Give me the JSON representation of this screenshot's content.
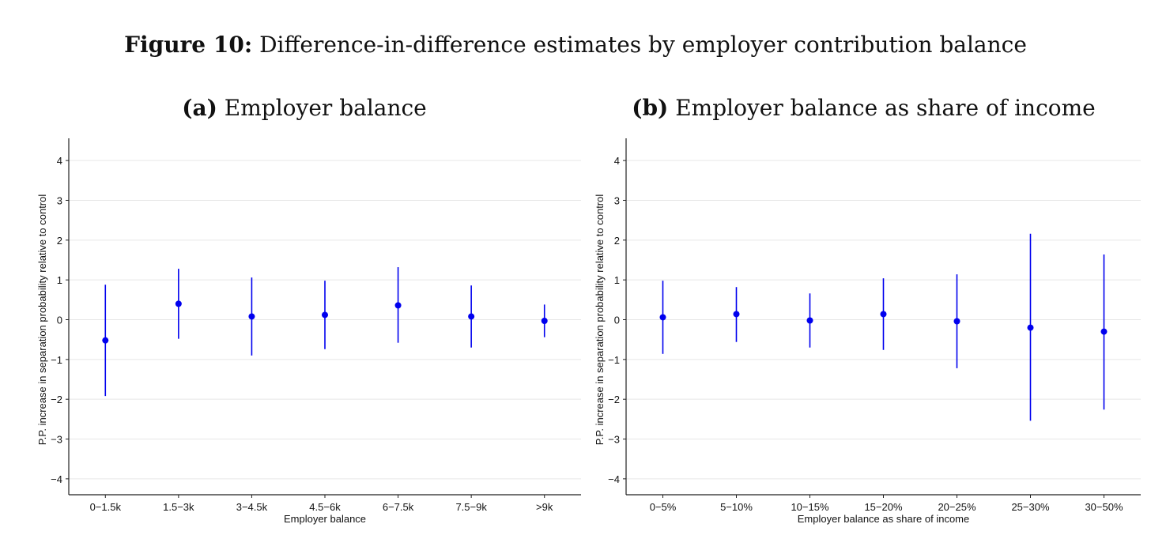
{
  "figure": {
    "label": "Figure 10:",
    "title": "Difference-in-difference estimates by employer contribution balance"
  },
  "colors": {
    "estimate": "#0000ee",
    "grid": "#e6e6e6",
    "axis": "#222222"
  },
  "chart_data": [
    {
      "type": "scatter",
      "panel_label": "(a)",
      "title": "Employer balance",
      "xlabel": "Employer balance",
      "ylabel": "P.P. increase in separation probability relative to control",
      "ylim": [
        -4.4,
        4.4
      ],
      "yticks": [
        -4,
        -3,
        -2,
        -1,
        0,
        1,
        2,
        3,
        4
      ],
      "grid": true,
      "categories": [
        "0−1.5k",
        "1.5−3k",
        "3−4.5k",
        "4.5−6k",
        "6−7.5k",
        "7.5−9k",
        ">9k"
      ],
      "estimates": [
        -0.52,
        0.4,
        0.08,
        0.12,
        0.36,
        0.08,
        -0.03
      ],
      "ci_low": [
        -1.92,
        -0.48,
        -0.9,
        -0.74,
        -0.58,
        -0.7,
        -0.44
      ],
      "ci_high": [
        0.88,
        1.28,
        1.06,
        0.98,
        1.32,
        0.86,
        0.38
      ]
    },
    {
      "type": "scatter",
      "panel_label": "(b)",
      "title": "Employer balance as share of income",
      "xlabel": "Employer balance as share of income",
      "ylabel": "P.P. increase in separation probability relative to control",
      "ylim": [
        -4.4,
        4.4
      ],
      "yticks": [
        -4,
        -3,
        -2,
        -1,
        0,
        1,
        2,
        3,
        4
      ],
      "grid": true,
      "categories": [
        "0−5%",
        "5−10%",
        "10−15%",
        "15−20%",
        "20−25%",
        "25−30%",
        "30−50%"
      ],
      "estimates": [
        0.06,
        0.14,
        -0.02,
        0.14,
        -0.04,
        -0.2,
        -0.3
      ],
      "ci_low": [
        -0.86,
        -0.56,
        -0.7,
        -0.76,
        -1.22,
        -2.54,
        -2.26
      ],
      "ci_high": [
        0.98,
        0.82,
        0.66,
        1.04,
        1.14,
        2.16,
        1.64
      ]
    }
  ]
}
